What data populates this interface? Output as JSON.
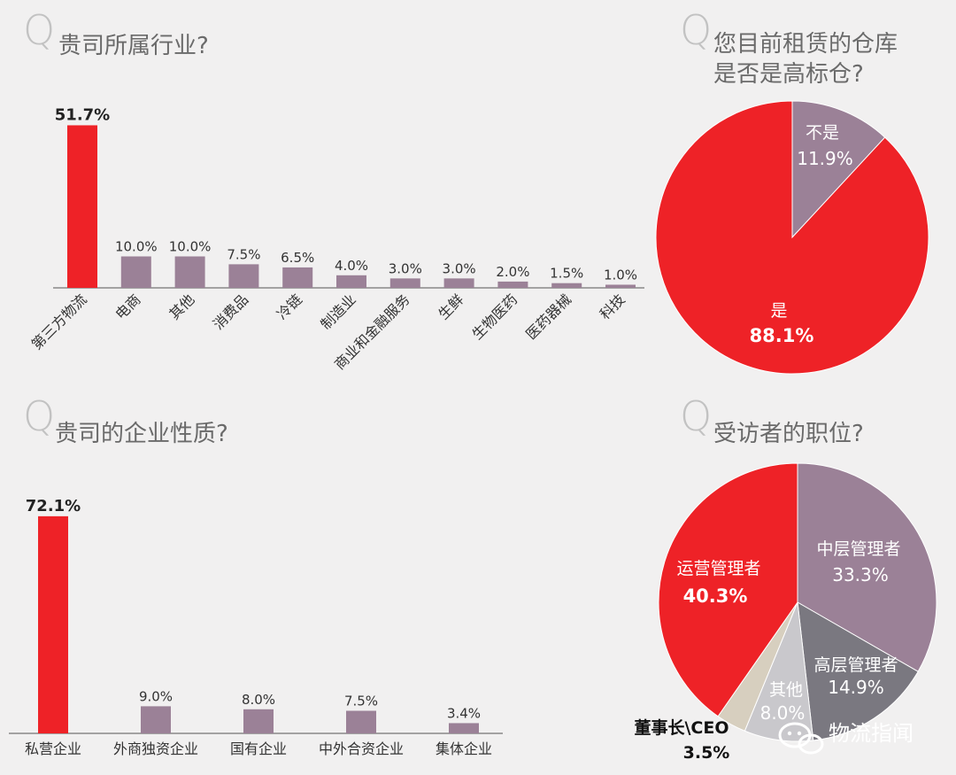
{
  "colors": {
    "red": "#ee2227",
    "mauve": "#9b8197",
    "slate": "#7a7880",
    "silver": "#c9c8cc",
    "beige": "#d7cfbf",
    "background": "#f1f0f0"
  },
  "q_mark": "Q",
  "chart_data": [
    {
      "type": "bar",
      "title": "贵司所属行业?",
      "categories": [
        "第三方物流",
        "电商",
        "其他",
        "消费品",
        "冷链",
        "制造业",
        "商业和金融服务",
        "生鲜",
        "生物医药",
        "医药器械",
        "科技"
      ],
      "values": [
        51.7,
        10.0,
        10.0,
        7.5,
        6.5,
        4.0,
        3.0,
        3.0,
        2.0,
        1.5,
        1.0
      ],
      "labels": [
        "51.7%",
        "10.0%",
        "10.0%",
        "7.5%",
        "6.5%",
        "4.0%",
        "3.0%",
        "3.0%",
        "2.0%",
        "1.5%",
        "1.0%"
      ],
      "highlight_index": 0,
      "unit": "%"
    },
    {
      "type": "pie",
      "title": "您目前租赁的仓库是否是高标仓?",
      "title_lines": [
        "您目前租赁的仓库",
        "是否是高标仓?"
      ],
      "slices": [
        {
          "label": "不是",
          "value": 11.9,
          "display": "11.9%",
          "color": "#9b8197"
        },
        {
          "label": "是",
          "value": 88.1,
          "display": "88.1%",
          "color": "#ee2227"
        }
      ]
    },
    {
      "type": "bar",
      "title": "贵司的企业性质?",
      "categories": [
        "私营企业",
        "外商独资企业",
        "国有企业",
        "中外合资企业",
        "集体企业"
      ],
      "values": [
        72.1,
        9.0,
        8.0,
        7.5,
        3.4
      ],
      "labels": [
        "72.1%",
        "9.0%",
        "8.0%",
        "7.5%",
        "3.4%"
      ],
      "highlight_index": 0,
      "unit": "%"
    },
    {
      "type": "pie",
      "title": "受访者的职位?",
      "slices": [
        {
          "label": "中层管理者",
          "value": 33.3,
          "display": "33.3%",
          "color": "#9b8197"
        },
        {
          "label": "高层管理者",
          "value": 14.9,
          "display": "14.9%",
          "color": "#7a7880"
        },
        {
          "label": "其他",
          "value": 8.0,
          "display": "8.0%",
          "color": "#c9c8cc"
        },
        {
          "label": "董事长\\CEO",
          "value": 3.5,
          "display": "3.5%",
          "color": "#d7cfbf"
        },
        {
          "label": "运营管理者",
          "value": 40.3,
          "display": "40.3%",
          "color": "#ee2227"
        }
      ]
    }
  ],
  "watermark": {
    "text": "物流指闻",
    "icon": "wechat-icon"
  }
}
